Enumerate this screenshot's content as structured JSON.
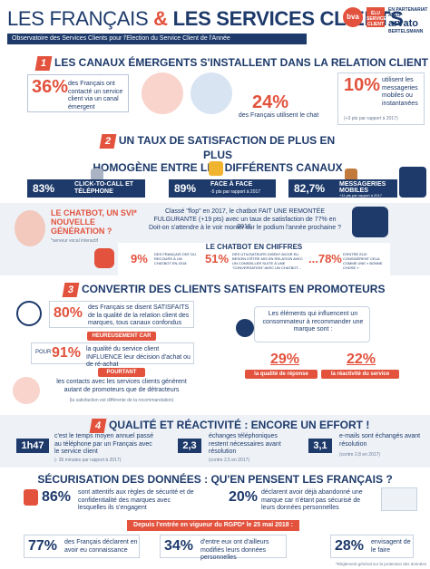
{
  "header": {
    "title_part1": "LES FRANÇAIS ",
    "title_amp": "& ",
    "title_part2": "LES SERVICES CLIENTS",
    "subtitle": "Observatoire des Services Clients pour l'Election du Service Client de l'Année",
    "logo_bva": "bva",
    "logo_elu_text": "ÉLU SERVICE CLIENT 2019",
    "logo_arvato_top": "EN PARTENARIAT AVEC",
    "logo_arvato": "arvato",
    "logo_arvato_sub": "BERTELSMANN"
  },
  "section1": {
    "number": "1",
    "heading": "LES CANAUX ÉMERGENTS S'INSTALLENT DANS LA RELATION CLIENT",
    "stat1_value": "36%",
    "stat1_text": "des Français ont contacté un service client via un canal émergent",
    "stat2_value": "24%",
    "stat2_text": "des Français utilisent le chat",
    "stat3_value": "10%",
    "stat3_text": "utilisent les messageries mobiles ou instantanées",
    "stat3_note": "(+3 pts par rapport à 2017)"
  },
  "section2": {
    "number": "2",
    "heading_l1": "UN TAUX DE SATISFACTION DE PLUS EN PLUS",
    "heading_l2": "HOMOGÈNE ENTRE LES DIFFÉRENTS CANAUX",
    "bar1_value": "83%",
    "bar1_label": "CLICK-TO-CALL ET TÉLÉPHONE",
    "bar2_value": "89%",
    "bar2_label": "FACE À FACE",
    "bar2_note": "-5 pts par rapport à 2017",
    "bar3_value": "82,7%",
    "bar3_label": "MESSAGERIES MOBILES",
    "bar3_note": "+11 pts par rapport à 2017",
    "chatbot_title": "LE CHATBOT, UN SVI* NOUVELLE GÉNÉRATION ?",
    "chatbot_note": "*serveur vocal interactif",
    "chatbot_text1": "Classé \"flop\" en 2017, le chatbot FAIT UNE REMONTÉE FULGURANTE (+19 pts) avec un taux de satisfaction de 77% en 2018.",
    "chatbot_text2": "Doit-on s'attendre à le voir monter sur le podium l'année prochaine ?",
    "figures_title": "LE CHATBOT EN CHIFFRES",
    "fig1_value": "9%",
    "fig1_text": "DES FRANÇAIS ONT DU RECOURS À UN CHATBOT EN 2018",
    "fig2_value": "51%",
    "fig2_text": "DES UTILISATEURS DISENT AVOIR EU BESOIN D'ÊTRE MIS EN RELATION AVEC UN CONSEILLER SUITE À UNE \"CONVERSATION\" AVEC UN CHATBOT...",
    "fig3_value": "...78%",
    "fig3_text": "D'ENTRE EUX CONSIDÈRENT CELA COMME UNE « BONNE CHOSE »"
  },
  "section3": {
    "number": "3",
    "heading": "CONVERTIR DES CLIENTS SATISFAITS EN PROMOTEURS",
    "stat1_value": "80%",
    "stat1_text": "des Français se disent SATISFAITS de la qualité de la relation client des marques, tous canaux confondus",
    "chip1": "HEUREUSEMENT CAR",
    "stat2_prefix": "POUR",
    "stat2_value": "91%",
    "stat2_text": "la qualité du service client INFLUENCE leur décision d'achat ou de ré-achat",
    "chip2": "POURTANT",
    "stat3_value": "85%",
    "stat3_text": "les contacts avec les services clients génèrent autant de promoteurs que de détracteurs",
    "stat3_note": "(la satisfaction est différente de la recommandation)",
    "bubble_text": "Les éléments qui influencent un consommateur à recommander une marque sont :",
    "influence1_value": "29%",
    "influence1_label": "la qualité de réponse",
    "influence2_value": "22%",
    "influence2_label": "la réactivité du service"
  },
  "section4": {
    "number": "4",
    "heading": "QUALITÉ ET RÉACTIVITÉ : ENCORE UN EFFORT !",
    "stat1_value": "1h47",
    "stat1_text": "c'est le temps moyen annuel passé au téléphone par un Français avec le service client",
    "stat1_note": "(- 36 minutes par rapport à 2017)",
    "stat2_value": "2,3",
    "stat2_text": "échanges téléphoniques restent nécessaires avant résolution",
    "stat2_note": "(contre 2,5 en 2017)",
    "stat3_value": "3,1",
    "stat3_text": "e-mails sont échangés avant résolution",
    "stat3_note": "(contre 2,8 en 2017)"
  },
  "section5": {
    "heading": "SÉCURISATION DES DONNÉES : QU'EN PENSENT LES FRANÇAIS ?",
    "stat1_value": "86%",
    "stat1_text": "sont attentifs aux règles de sécurité et de confidentialité des marques avec lesquelles ils s'engagent",
    "stat2_value": "20%",
    "stat2_text": "déclarent avoir déjà abandonné une marque car n'étant pas sécurisé de leurs données personnelles",
    "banner": "Depuis l'entrée en vigueur du RGPD* le 25 mai 2018 :",
    "stat3_value": "77%",
    "stat3_text": "des Français déclarent en avoir eu connaissance",
    "stat4_value": "34%",
    "stat4_text": "d'entre eux ont d'ailleurs modifiés leurs données personnelles",
    "stat5_value": "28%",
    "stat5_text": "envisagent de le faire",
    "footnote": "*Règlement général sur la protection des données"
  },
  "colors": {
    "navy": "#1d3a6b",
    "red": "#e2523d",
    "grey": "#eef2f7"
  }
}
